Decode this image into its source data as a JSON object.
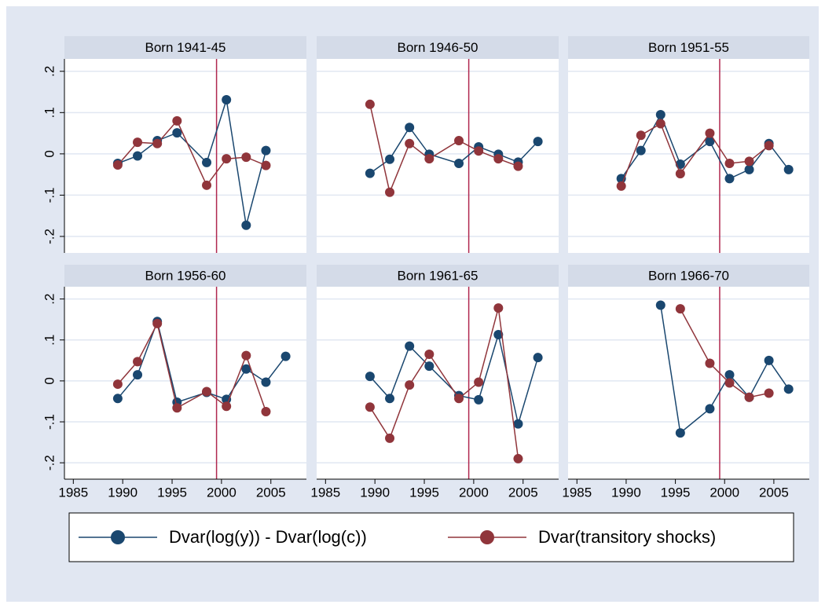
{
  "chart_data": [
    {
      "type": "line",
      "title": "Born 1941-45",
      "x": [
        1989.5,
        1991.5,
        1993.5,
        1995.5,
        1998.5,
        2000.5,
        2002.5,
        2004.5,
        2006.5
      ],
      "series": [
        {
          "name": "Dvar(log(y)) - Dvar(log(c))",
          "color": "#1a476f",
          "values": [
            -0.023,
            -0.005,
            0.032,
            0.051,
            -0.021,
            0.131,
            -0.173,
            0.008,
            null
          ]
        },
        {
          "name": "Dvar(transitory shocks)",
          "color": "#90353b",
          "values": [
            -0.027,
            0.028,
            0.025,
            0.08,
            -0.076,
            -0.012,
            -0.008,
            -0.028,
            null
          ]
        }
      ],
      "xlim": [
        1984.1,
        2008.6
      ],
      "ylim": [
        -0.24,
        0.23
      ],
      "xticks": [
        1985,
        1990,
        1995,
        2000,
        2005
      ],
      "yticks": [
        {
          "value": -0.2,
          "label": "-.2"
        },
        {
          "value": -0.1,
          "label": "-.1"
        },
        0,
        {
          "value": 0.1,
          "label": ".1"
        },
        {
          "value": 0.2,
          "label": ".2"
        }
      ],
      "vline": 1999.5,
      "vline_color": "#b0284f",
      "grid": true
    },
    {
      "type": "line",
      "title": "Born 1946-50",
      "x": [
        1989.5,
        1991.5,
        1993.5,
        1995.5,
        1998.5,
        2000.5,
        2002.5,
        2004.5,
        2006.5
      ],
      "series": [
        {
          "color": "#1a476f",
          "values": [
            -0.047,
            -0.013,
            0.064,
            -0.001,
            -0.023,
            0.017,
            -0.001,
            -0.02,
            0.03
          ]
        },
        {
          "color": "#90353b",
          "values": [
            0.12,
            -0.093,
            0.025,
            -0.012,
            0.032,
            0.007,
            -0.012,
            -0.03,
            null
          ]
        }
      ],
      "xlim": [
        1984.1,
        2008.6
      ],
      "ylim": [
        -0.24,
        0.23
      ],
      "xticks": [
        1985,
        1990,
        1995,
        2000,
        2005
      ],
      "yticks": [
        -0.2,
        -0.1,
        0,
        0.1,
        0.2
      ],
      "vline": 1999.5,
      "vline_color": "#b0284f",
      "grid": true
    },
    {
      "type": "line",
      "title": "Born 1951-55",
      "x": [
        1989.5,
        1991.5,
        1993.5,
        1995.5,
        1998.5,
        2000.5,
        2002.5,
        2004.5,
        2006.5
      ],
      "series": [
        {
          "color": "#1a476f",
          "values": [
            -0.06,
            0.008,
            0.095,
            -0.025,
            0.03,
            -0.06,
            -0.038,
            0.025,
            -0.038
          ]
        },
        {
          "color": "#90353b",
          "values": [
            -0.078,
            0.045,
            0.073,
            -0.048,
            0.05,
            -0.023,
            -0.018,
            0.02,
            null
          ]
        }
      ],
      "xlim": [
        1984.1,
        2008.6
      ],
      "ylim": [
        -0.24,
        0.23
      ],
      "xticks": [
        1985,
        1990,
        1995,
        2000,
        2005
      ],
      "yticks": [
        -0.2,
        -0.1,
        0,
        0.1,
        0.2
      ],
      "vline": 1999.5,
      "vline_color": "#b0284f",
      "grid": true
    },
    {
      "type": "line",
      "title": "Born 1956-60",
      "x": [
        1989.5,
        1991.5,
        1993.5,
        1995.5,
        1998.5,
        2000.5,
        2002.5,
        2004.5,
        2006.5
      ],
      "series": [
        {
          "color": "#1a476f",
          "values": [
            -0.043,
            0.015,
            0.145,
            -0.052,
            -0.028,
            -0.045,
            0.029,
            -0.003,
            0.06
          ]
        },
        {
          "color": "#90353b",
          "values": [
            -0.008,
            0.047,
            0.14,
            -0.066,
            -0.026,
            -0.062,
            0.062,
            -0.075,
            null
          ]
        }
      ],
      "xlim": [
        1984.1,
        2008.6
      ],
      "ylim": [
        -0.24,
        0.23
      ],
      "xticks": [
        1985,
        1990,
        1995,
        2000,
        2005
      ],
      "yticks": [
        {
          "value": -0.2,
          "label": "-.2"
        },
        {
          "value": -0.1,
          "label": "-.1"
        },
        0,
        {
          "value": 0.1,
          "label": ".1"
        },
        {
          "value": 0.2,
          "label": ".2"
        }
      ],
      "vline": 1999.5,
      "vline_color": "#b0284f",
      "grid": true
    },
    {
      "type": "line",
      "title": "Born 1961-65",
      "x": [
        1989.5,
        1991.5,
        1993.5,
        1995.5,
        1998.5,
        2000.5,
        2002.5,
        2004.5,
        2006.5
      ],
      "series": [
        {
          "color": "#1a476f",
          "values": [
            0.011,
            -0.043,
            0.085,
            0.036,
            -0.036,
            -0.046,
            0.113,
            -0.105,
            0.057
          ]
        },
        {
          "color": "#90353b",
          "values": [
            -0.064,
            -0.14,
            -0.01,
            0.065,
            -0.043,
            -0.003,
            0.178,
            -0.19,
            null
          ]
        }
      ],
      "xlim": [
        1984.1,
        2008.6
      ],
      "ylim": [
        -0.24,
        0.23
      ],
      "xticks": [
        1985,
        1990,
        1995,
        2000,
        2005
      ],
      "yticks": [
        -0.2,
        -0.1,
        0,
        0.1,
        0.2
      ],
      "vline": 1999.5,
      "vline_color": "#b0284f",
      "grid": true
    },
    {
      "type": "line",
      "title": "Born 1966-70",
      "x": [
        1989.5,
        1991.5,
        1993.5,
        1995.5,
        1998.5,
        2000.5,
        2002.5,
        2004.5,
        2006.5
      ],
      "series": [
        {
          "color": "#1a476f",
          "values": [
            null,
            null,
            0.185,
            -0.127,
            -0.068,
            0.015,
            -0.04,
            0.05,
            -0.02
          ]
        },
        {
          "color": "#90353b",
          "values": [
            null,
            null,
            null,
            0.176,
            0.043,
            -0.005,
            -0.04,
            -0.03,
            null
          ]
        }
      ],
      "xlim": [
        1984.1,
        2008.6
      ],
      "ylim": [
        -0.24,
        0.23
      ],
      "xticks": [
        1985,
        1990,
        1995,
        2000,
        2005
      ],
      "yticks": [
        -0.2,
        -0.1,
        0,
        0.1,
        0.2
      ],
      "vline": 1999.5,
      "vline_color": "#b0284f",
      "grid": true
    }
  ]
}
